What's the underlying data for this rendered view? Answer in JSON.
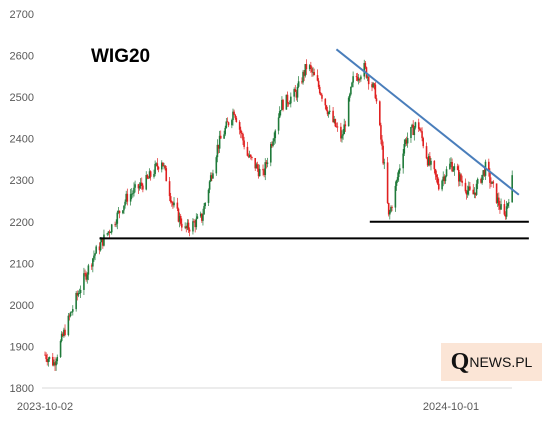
{
  "chart_data": {
    "type": "candlestick",
    "title": "WIG20",
    "xlabel": "",
    "ylabel": "",
    "ylim": [
      1800,
      2700
    ],
    "yticks": [
      1800,
      1900,
      2000,
      2100,
      2200,
      2300,
      2400,
      2500,
      2600,
      2700
    ],
    "xtick_labels": [
      "2023-10-02",
      "2024-10-01"
    ],
    "grid": false,
    "colors": {
      "up": "#1f7a3a",
      "down": "#e02020",
      "trendline": "#4a7ebb",
      "support": "#000000"
    },
    "series": [
      {
        "name": "",
        "x": [
          "2023-10-02",
          "2023-10-10",
          "2023-10-20",
          "2023-11-01",
          "2023-11-15",
          "2023-12-01",
          "2023-12-15",
          "2024-01-02",
          "2024-01-15",
          "2024-01-25",
          "2024-02-05",
          "2024-02-20",
          "2024-03-05",
          "2024-03-20",
          "2024-04-01",
          "2024-04-15",
          "2024-05-01",
          "2024-05-15",
          "2024-05-25",
          "2024-06-05",
          "2024-06-15",
          "2024-06-25",
          "2024-07-05",
          "2024-07-15",
          "2024-07-25",
          "2024-08-02",
          "2024-08-06",
          "2024-08-12",
          "2024-08-20",
          "2024-09-01",
          "2024-09-10",
          "2024-09-20",
          "2024-10-01",
          "2024-10-10",
          "2024-10-20",
          "2024-11-01",
          "2024-11-12",
          "2024-11-18",
          "2024-11-25"
        ],
        "values": [
          1880,
          1860,
          1940,
          2030,
          2120,
          2190,
          2260,
          2300,
          2350,
          2240,
          2180,
          2210,
          2380,
          2470,
          2360,
          2310,
          2480,
          2510,
          2580,
          2520,
          2450,
          2400,
          2540,
          2570,
          2510,
          2330,
          2210,
          2280,
          2390,
          2440,
          2350,
          2290,
          2340,
          2300,
          2260,
          2330,
          2250,
          2210,
          2300
        ]
      }
    ],
    "annotations": [
      {
        "type": "trendline",
        "from": [
          "2024-06-20",
          2615
        ],
        "to": [
          "2024-12-01",
          2265
        ]
      },
      {
        "type": "support",
        "from": [
          "2024-07-20",
          2200
        ],
        "to": [
          "2024-12-10",
          2200
        ]
      },
      {
        "type": "support",
        "from": [
          "2023-11-20",
          2160
        ],
        "to": [
          "2024-12-10",
          2160
        ]
      }
    ]
  },
  "logo": {
    "big": "Q",
    "small": "NEWS.PL"
  }
}
